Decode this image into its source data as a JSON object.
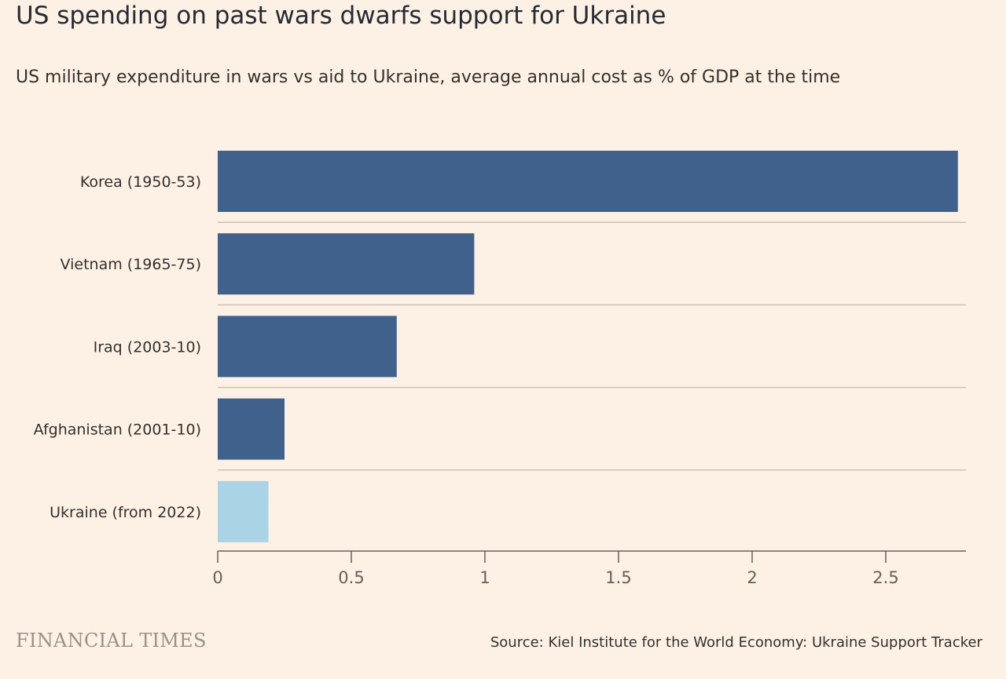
{
  "title": "US spending on past wars dwarfs support for Ukraine",
  "subtitle": "US military expenditure in wars vs aid to Ukraine, average annual cost as % of GDP at the time",
  "logo": "FINANCIAL TIMES",
  "source": "Source: Kiel Institute for the World Economy: Ukraine Support Tracker",
  "colors": {
    "background": "#fdf1e5",
    "war_bar": "#41618d",
    "ukraine_bar": "#aad4e6",
    "gridline": "#ccc1b7",
    "axis": "#66605c"
  },
  "chart_data": {
    "type": "bar",
    "orientation": "horizontal",
    "categories": [
      "Korea (1950-53)",
      "Vietnam (1965-75)",
      "Iraq (2003-10)",
      "Afghanistan (2001-10)",
      "Ukraine (from 2022)"
    ],
    "values": [
      2.77,
      0.96,
      0.67,
      0.25,
      0.19
    ],
    "highlight_index": 4,
    "xlim": [
      0,
      2.8
    ],
    "xticks": [
      0,
      0.5,
      1,
      1.5,
      2,
      2.5
    ],
    "xtick_labels": [
      "0",
      "0.5",
      "1",
      "1.5",
      "2",
      "2.5"
    ],
    "grid": false
  }
}
